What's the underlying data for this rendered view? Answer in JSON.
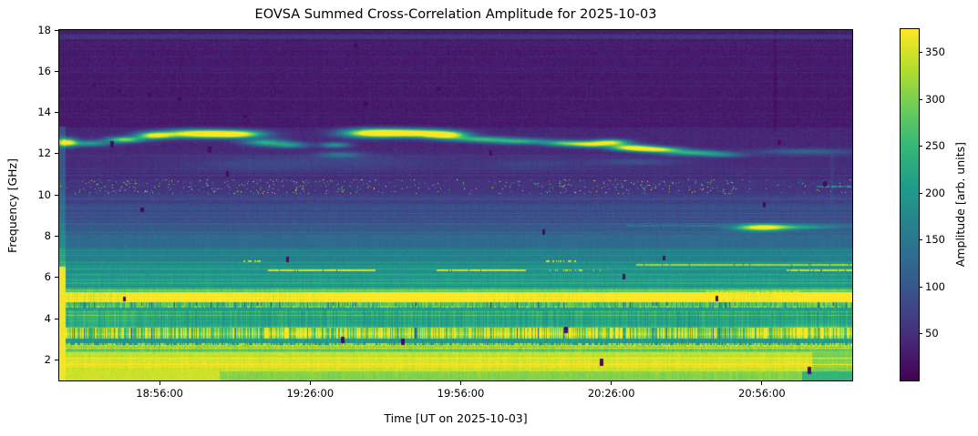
{
  "chart_data": {
    "type": "heatmap",
    "title": "EOVSA Summed Cross-Correlation Amplitude for 2025-10-03",
    "xlabel": "Time [UT on 2025-10-03]",
    "ylabel": "Frequency [GHz]",
    "colorbar_label": "Amplitude [arb. units]",
    "colormap": "viridis",
    "x_start": "18:36:00",
    "x_end": "21:14:00",
    "x_span_minutes": 158,
    "x_ticks": [
      {
        "label": "18:56:00",
        "minutes": 20
      },
      {
        "label": "19:26:00",
        "minutes": 50
      },
      {
        "label": "19:56:00",
        "minutes": 80
      },
      {
        "label": "20:26:00",
        "minutes": 110
      },
      {
        "label": "20:56:00",
        "minutes": 140
      }
    ],
    "y_range_ghz": [
      1.0,
      18.0
    ],
    "y_ticks_ghz": [
      2,
      4,
      6,
      8,
      10,
      12,
      14,
      16,
      18
    ],
    "amplitude_range": [
      0,
      375
    ],
    "colorbar_ticks": [
      50,
      100,
      150,
      200,
      250,
      300,
      350
    ],
    "frequency_profile_columns": [
      "f_low_ghz",
      "f_high_ghz",
      "amplitude",
      "vertical_striation",
      "row_lines",
      "dark_dashes"
    ],
    "frequency_profile": [
      [
        1.0,
        1.45,
        308,
        10,
        1,
        0
      ],
      [
        1.45,
        2.38,
        352,
        8,
        1,
        0
      ],
      [
        2.38,
        2.62,
        298,
        14,
        1,
        0
      ],
      [
        2.62,
        2.72,
        330,
        30,
        1,
        0
      ],
      [
        2.72,
        3.02,
        196,
        14,
        1,
        0
      ],
      [
        3.02,
        3.58,
        298,
        85,
        1,
        1
      ],
      [
        3.58,
        4.38,
        220,
        26,
        1,
        0
      ],
      [
        4.38,
        4.52,
        202,
        12,
        0,
        0
      ],
      [
        4.52,
        4.8,
        262,
        48,
        0,
        1
      ],
      [
        4.8,
        5.28,
        350,
        18,
        0,
        0
      ],
      [
        5.28,
        5.52,
        246,
        12,
        1,
        0
      ],
      [
        5.52,
        6.22,
        198,
        8,
        1,
        0
      ],
      [
        6.22,
        6.5,
        188,
        7,
        1,
        0
      ],
      [
        6.5,
        6.74,
        178,
        7,
        1,
        0
      ],
      [
        6.74,
        7.06,
        166,
        6,
        1,
        0
      ],
      [
        7.06,
        7.36,
        158,
        6,
        1,
        0
      ],
      [
        7.36,
        8.12,
        128,
        5,
        1,
        0
      ],
      [
        8.12,
        8.66,
        104,
        4,
        1,
        0
      ],
      [
        8.66,
        9.56,
        86,
        4,
        1,
        0
      ],
      [
        9.56,
        10.05,
        70,
        3,
        1,
        0
      ],
      [
        10.05,
        10.75,
        58,
        3,
        0,
        0
      ],
      [
        10.75,
        11.98,
        47,
        3,
        1,
        0
      ],
      [
        11.98,
        13.26,
        42,
        3,
        0,
        0
      ],
      [
        13.26,
        17.54,
        27,
        2,
        1,
        0
      ],
      [
        17.54,
        17.8,
        58,
        3,
        0,
        0
      ],
      [
        17.8,
        18.01,
        32,
        2,
        0,
        0
      ]
    ],
    "blob_columns": [
      "t_minutes",
      "f_ghz",
      "t_sigma_min",
      "f_sigma_ghz",
      "amplitude_add"
    ],
    "blobs": [
      [
        1.5,
        12.55,
        1.4,
        0.14,
        330
      ],
      [
        6,
        12.5,
        3,
        0.1,
        170
      ],
      [
        13,
        12.68,
        2.5,
        0.1,
        270
      ],
      [
        19,
        12.88,
        2.5,
        0.12,
        310
      ],
      [
        27,
        12.97,
        4.5,
        0.14,
        365
      ],
      [
        35,
        12.95,
        4,
        0.13,
        365
      ],
      [
        41,
        12.55,
        3,
        0.12,
        190
      ],
      [
        46,
        12.42,
        2.5,
        0.1,
        150
      ],
      [
        55,
        12.42,
        2,
        0.09,
        160
      ],
      [
        56,
        11.95,
        3,
        0.1,
        90
      ],
      [
        62,
        13.0,
        4,
        0.15,
        330
      ],
      [
        70,
        13.0,
        5,
        0.14,
        370
      ],
      [
        77,
        12.9,
        3,
        0.13,
        330
      ],
      [
        84,
        12.7,
        4,
        0.1,
        200
      ],
      [
        92,
        12.6,
        4,
        0.1,
        190
      ],
      [
        101,
        12.5,
        3,
        0.1,
        230
      ],
      [
        106,
        12.45,
        2.5,
        0.1,
        260
      ],
      [
        110,
        12.55,
        2.5,
        0.1,
        300
      ],
      [
        114,
        12.3,
        3,
        0.1,
        330
      ],
      [
        119,
        12.2,
        3.5,
        0.09,
        320
      ],
      [
        126,
        12.05,
        4,
        0.09,
        190
      ],
      [
        132,
        11.95,
        3,
        0.08,
        110
      ],
      [
        149,
        12.1,
        7,
        0.1,
        80
      ],
      [
        38,
        11.5,
        10,
        0.25,
        30
      ],
      [
        60,
        11.6,
        12,
        0.25,
        30
      ],
      [
        95,
        11.5,
        8,
        0.2,
        28
      ],
      [
        115,
        11.6,
        6,
        0.12,
        45
      ],
      [
        140,
        8.42,
        3.5,
        0.11,
        300
      ],
      [
        148,
        8.45,
        5,
        0.08,
        110
      ],
      [
        70,
        5.05,
        14,
        0.2,
        55
      ],
      [
        25,
        5.05,
        9,
        0.15,
        40
      ],
      [
        120,
        5.05,
        12,
        0.15,
        50
      ],
      [
        153,
        5.0,
        7,
        0.22,
        60
      ],
      [
        45,
        3.3,
        12,
        0.2,
        45
      ],
      [
        100,
        3.3,
        15,
        0.2,
        40
      ],
      [
        152,
        3.4,
        8,
        0.25,
        55
      ],
      [
        10,
        4.0,
        6,
        0.3,
        30
      ]
    ],
    "line_segment_columns": [
      "f_ghz",
      "t_start_min",
      "t_end_min",
      "amplitude",
      "dash_density"
    ],
    "line_segments": [
      [
        6.77,
        36.5,
        40.5,
        350,
        0.5
      ],
      [
        6.77,
        97,
        103,
        350,
        0.5
      ],
      [
        6.33,
        41.5,
        63,
        358,
        0.97
      ],
      [
        6.33,
        75,
        93,
        358,
        0.95
      ],
      [
        6.33,
        97,
        108,
        345,
        0.35
      ],
      [
        6.33,
        145,
        158,
        352,
        0.9
      ],
      [
        6.6,
        115,
        158,
        330,
        0.92
      ],
      [
        2.77,
        0,
        158,
        345,
        0.5
      ],
      [
        4.58,
        0,
        158,
        335,
        0.3
      ],
      [
        8.5,
        113,
        158,
        165,
        0.9
      ],
      [
        5.33,
        129,
        148,
        340,
        0.85
      ],
      [
        10.4,
        151,
        158,
        210,
        0.7
      ]
    ],
    "speckle_band": {
      "f0": 10.05,
      "f1": 10.75,
      "base_density": 0.012,
      "dense_intervals": [
        [
          4,
          50,
          0.05
        ],
        [
          52,
          72,
          0.04
        ],
        [
          85,
          135,
          0.038
        ]
      ],
      "amp_min": 200,
      "amp_max": 375
    },
    "dropout_columns": [
      "t_minutes",
      "f_high_ghz",
      "f_low_ghz"
    ],
    "dropouts": [
      [
        10.5,
        12.62,
        12.3
      ],
      [
        30,
        12.35,
        12.05
      ],
      [
        16.5,
        9.4,
        9.15
      ],
      [
        33.5,
        11.15,
        10.9
      ],
      [
        45.5,
        7.0,
        6.72
      ],
      [
        13,
        5.05,
        4.82
      ],
      [
        56.5,
        3.1,
        2.8
      ],
      [
        68.5,
        3.05,
        2.72
      ],
      [
        61,
        14.55,
        14.3
      ],
      [
        86,
        12.15,
        11.9
      ],
      [
        96.5,
        8.35,
        8.08
      ],
      [
        101,
        3.62,
        3.3
      ],
      [
        108,
        2.05,
        1.72
      ],
      [
        112.5,
        6.15,
        5.88
      ],
      [
        120.5,
        7.05,
        6.82
      ],
      [
        131,
        5.1,
        4.82
      ],
      [
        140.5,
        9.65,
        9.38
      ],
      [
        143.5,
        12.65,
        12.42
      ],
      [
        149.5,
        1.65,
        1.3
      ],
      [
        152.5,
        10.65,
        10.4
      ],
      [
        59,
        17.35,
        17.12
      ],
      [
        75.5,
        15.25,
        15.02
      ],
      [
        37,
        13.9,
        13.7
      ],
      [
        7,
        15.45,
        15.25
      ],
      [
        12,
        15.15,
        14.95
      ],
      [
        18,
        14.95,
        14.75
      ],
      [
        24,
        14.75,
        14.55
      ]
    ],
    "column_mark_columns": [
      "t_minutes",
      "f_low",
      "f_high",
      "delta",
      "half_width_min"
    ],
    "column_marks": [
      [
        142.5,
        13.0,
        18.0,
        -9,
        0.35
      ],
      [
        154,
        9.6,
        12.0,
        14,
        0.3
      ]
    ],
    "left_edge_burst": {
      "t_max": 1.3,
      "full_f_max": 6.5,
      "boost_f_max": 13.3,
      "amp_full": 370,
      "boost": 55
    },
    "bottom_mods": {
      "low_f": 1.45,
      "yellow_until": 32,
      "yellow_amp": 348,
      "fade_after": 148,
      "fade_amp": 245,
      "mid_f": 2.38,
      "mid_fade_after": 150,
      "mid_delta": -45
    }
  }
}
